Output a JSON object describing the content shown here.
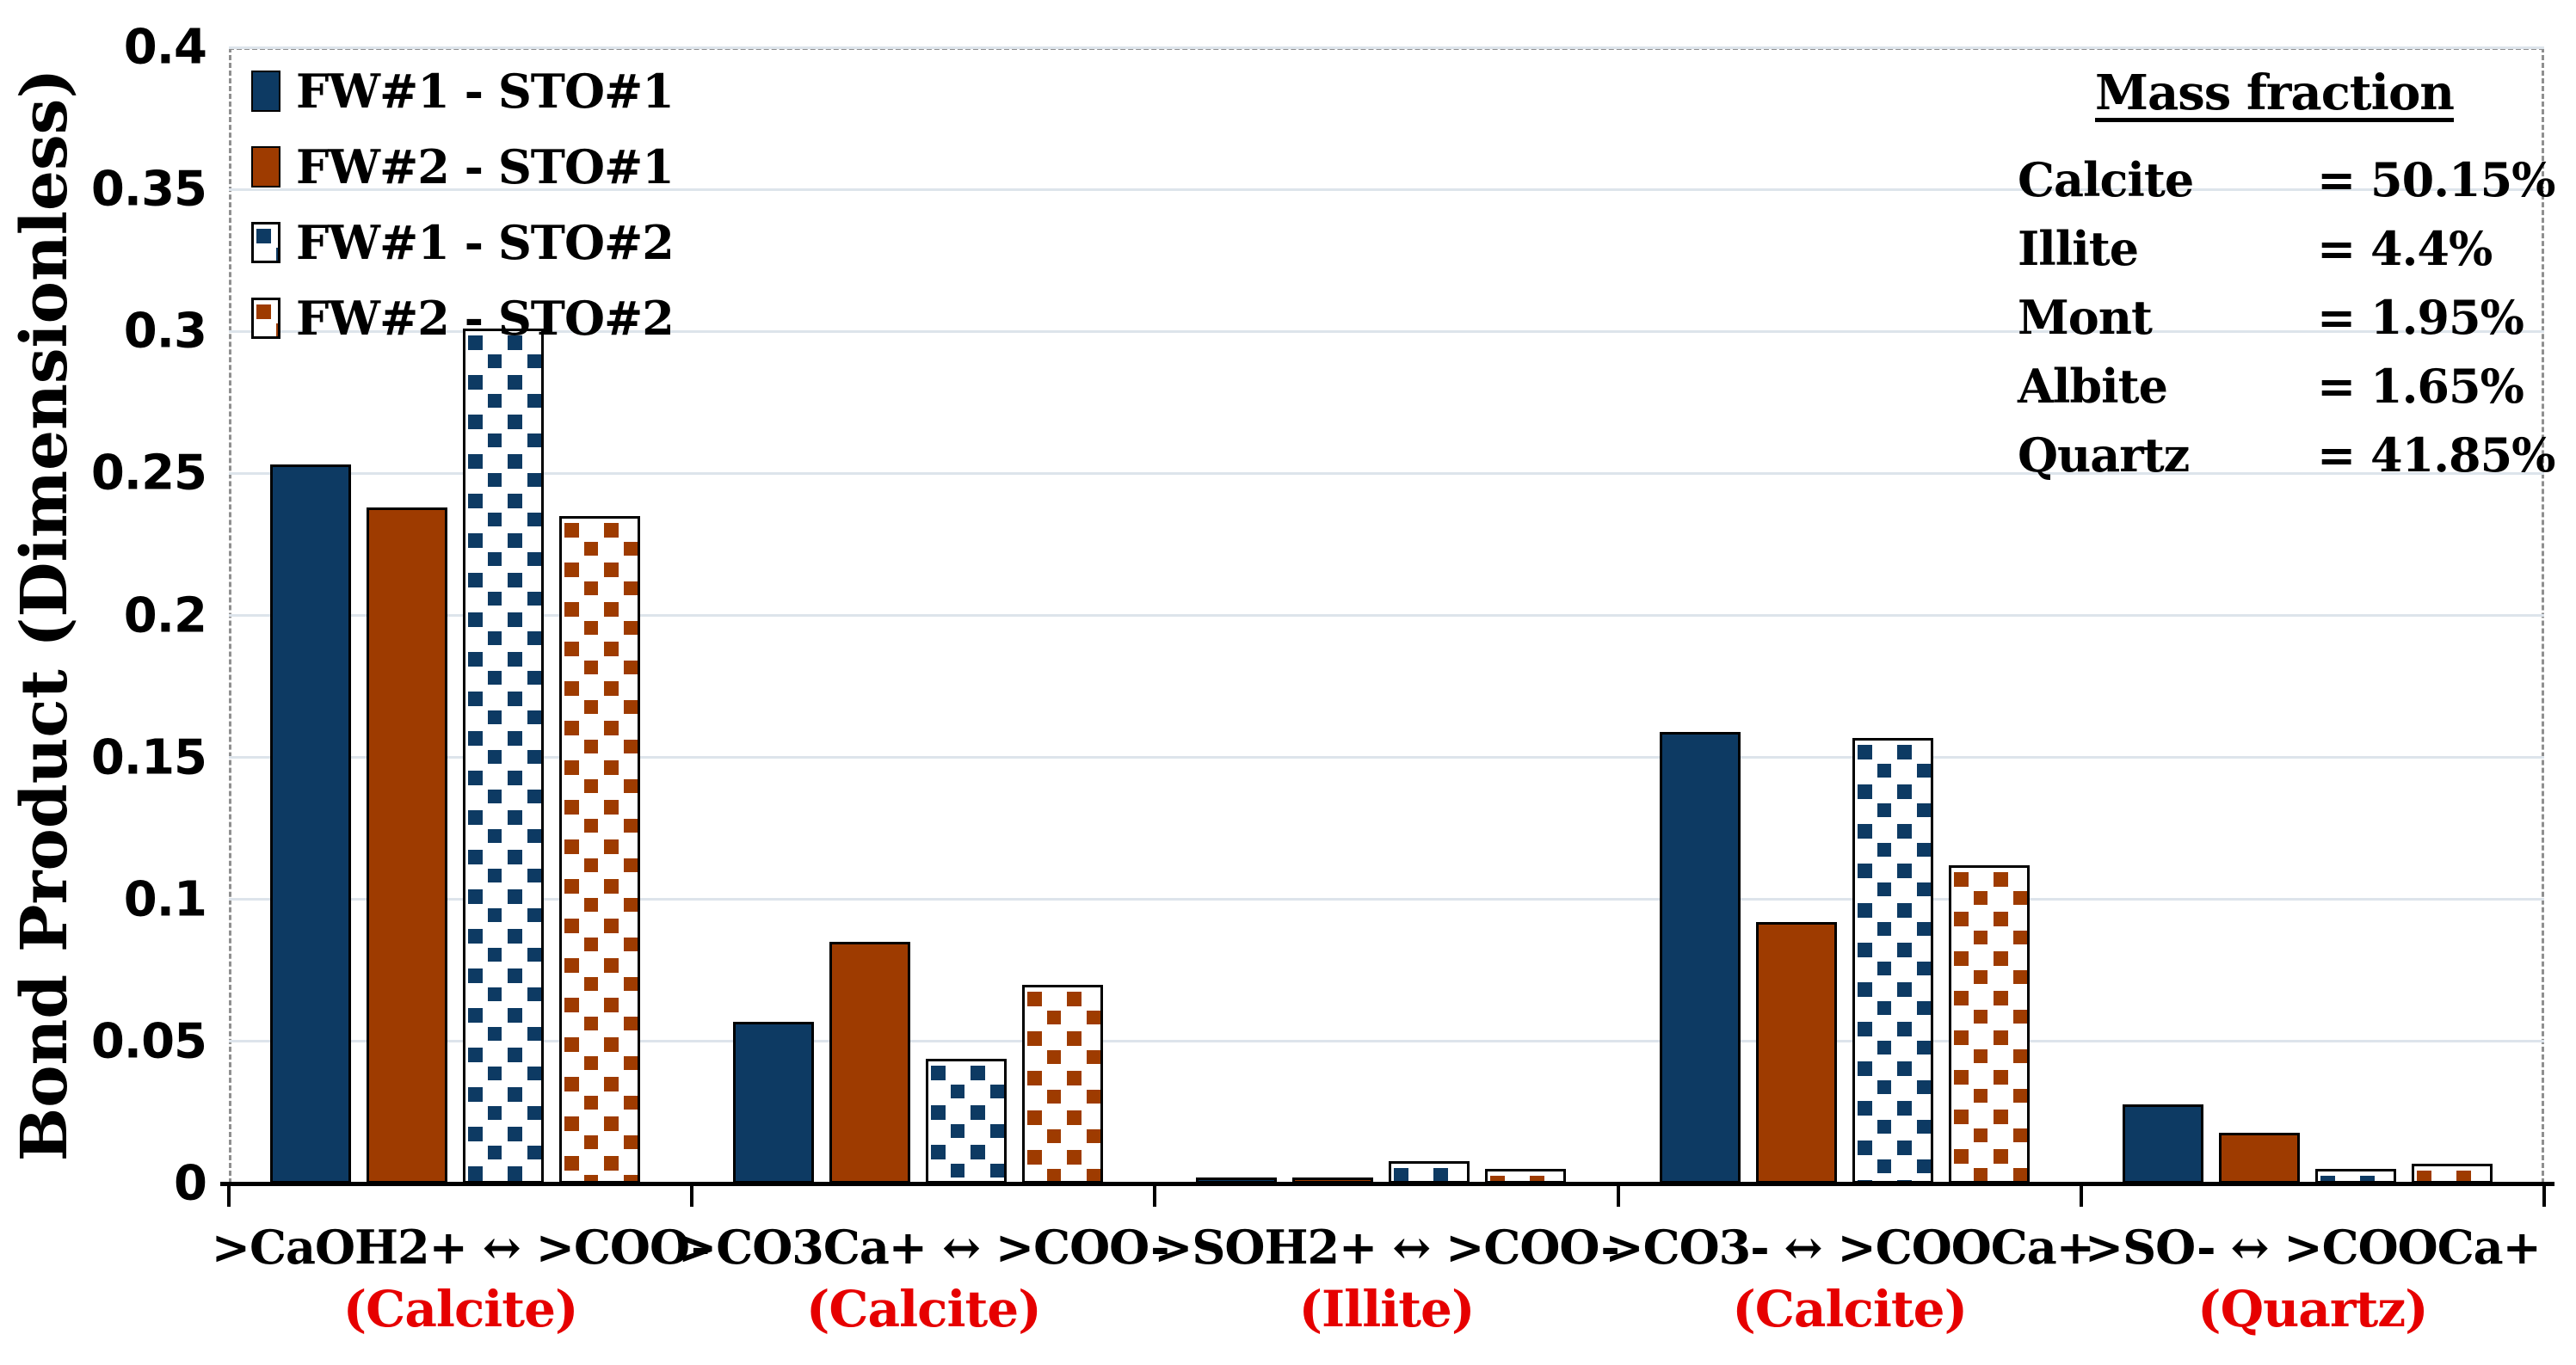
{
  "chart_data": {
    "type": "bar",
    "title": "",
    "xlabel": "",
    "ylabel": "Bond Product (Dimensionless)",
    "ylim": [
      0,
      0.4
    ],
    "ytick_step": 0.05,
    "yticks": [
      0,
      0.05,
      0.1,
      0.15,
      0.2,
      0.25,
      0.3,
      0.35,
      0.4
    ],
    "ytick_labels": [
      "0",
      "0.05",
      "0.1",
      "0.15",
      "0.2",
      "0.25",
      "0.3",
      "0.35",
      "0.4"
    ],
    "grid": "horizontal",
    "legend_position": "top-left",
    "categories": [
      {
        "formula": ">CaOH2+ ↔ >COO-",
        "mineral": "(Calcite)"
      },
      {
        "formula": ">CO3Ca+ ↔ >COO-",
        "mineral": "(Calcite)"
      },
      {
        "formula": ">SOH2+ ↔ >COO-",
        "mineral": "(Illite)"
      },
      {
        "formula": ">CO3- ↔ >COOCa+",
        "mineral": "(Calcite)"
      },
      {
        "formula": ">SO- ↔ >COOCa+",
        "mineral": "(Quartz)"
      }
    ],
    "series": [
      {
        "name": "FW#1 - STO#1",
        "fill": "solid",
        "color": "#0d3a63",
        "values": [
          0.253,
          0.057,
          0.002,
          0.159,
          0.028
        ]
      },
      {
        "name": "FW#2 - STO#1",
        "fill": "solid",
        "color": "#9e3b00",
        "values": [
          0.238,
          0.085,
          0.002,
          0.092,
          0.018
        ]
      },
      {
        "name": "FW#1 - STO#2",
        "fill": "pattern",
        "color": "#0d3a63",
        "values": [
          0.301,
          0.044,
          0.008,
          0.157,
          0.005
        ]
      },
      {
        "name": "FW#2 - STO#2",
        "fill": "pattern",
        "color": "#9e3b00",
        "values": [
          0.235,
          0.07,
          0.005,
          0.112,
          0.007
        ]
      }
    ]
  },
  "legend": {
    "entries": [
      "FW#1 - STO#1",
      "FW#2 - STO#1",
      "FW#1 - STO#2",
      "FW#2 - STO#2"
    ]
  },
  "mass_fraction": {
    "title": "Mass fraction",
    "rows": [
      {
        "name": "Calcite",
        "value": "= 50.15%"
      },
      {
        "name": "Illite",
        "value": "= 4.4%"
      },
      {
        "name": "Mont",
        "value": "= 1.95%"
      },
      {
        "name": "Albite",
        "value": "= 1.65%"
      },
      {
        "name": "Quartz",
        "value": "= 41.85%"
      }
    ]
  },
  "colors": {
    "navy": "#0d3a63",
    "orange": "#9e3b00",
    "red_label": "#e60000",
    "gridline": "#dde4eb",
    "plot_border": "#8f8f8f",
    "axis": "#000000"
  }
}
